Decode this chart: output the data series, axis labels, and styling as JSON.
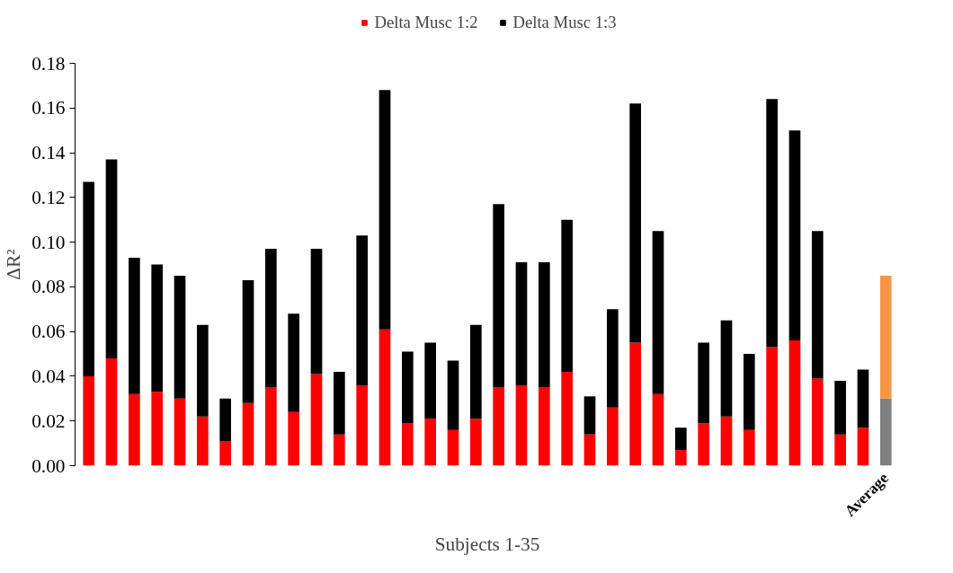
{
  "chart_data": {
    "type": "bar",
    "stacked": true,
    "xlabel": "Subjects 1-35",
    "ylabel": "ΔR²",
    "categories": [
      null,
      null,
      null,
      null,
      null,
      null,
      null,
      null,
      null,
      null,
      null,
      null,
      null,
      null,
      null,
      null,
      null,
      null,
      null,
      null,
      null,
      null,
      null,
      null,
      null,
      null,
      null,
      null,
      null,
      null,
      null,
      null,
      null,
      null,
      null,
      "Average"
    ],
    "series": [
      {
        "name": "Delta Musc 1:2",
        "color": "#ff0000",
        "colors": [
          "#ff0000",
          "#ff0000",
          "#ff0000",
          "#ff0000",
          "#ff0000",
          "#ff0000",
          "#ff0000",
          "#ff0000",
          "#ff0000",
          "#ff0000",
          "#ff0000",
          "#ff0000",
          "#ff0000",
          "#ff0000",
          "#ff0000",
          "#ff0000",
          "#ff0000",
          "#ff0000",
          "#ff0000",
          "#ff0000",
          "#ff0000",
          "#ff0000",
          "#ff0000",
          "#ff0000",
          "#ff0000",
          "#ff0000",
          "#ff0000",
          "#ff0000",
          "#ff0000",
          "#ff0000",
          "#ff0000",
          "#ff0000",
          "#ff0000",
          "#ff0000",
          "#ff0000",
          "#808080"
        ],
        "values": [
          0.04,
          0.048,
          0.032,
          0.033,
          0.03,
          0.022,
          0.011,
          0.028,
          0.035,
          0.024,
          0.041,
          0.014,
          0.036,
          0.061,
          0.019,
          0.021,
          0.016,
          0.021,
          0.035,
          0.036,
          0.035,
          0.042,
          0.014,
          0.026,
          0.055,
          0.032,
          0.007,
          0.019,
          0.022,
          0.016,
          0.053,
          0.056,
          0.039,
          0.014,
          0.017,
          0.03
        ]
      },
      {
        "name": "Delta Musc 1:3",
        "color": "#000000",
        "colors": [
          "#000000",
          "#000000",
          "#000000",
          "#000000",
          "#000000",
          "#000000",
          "#000000",
          "#000000",
          "#000000",
          "#000000",
          "#000000",
          "#000000",
          "#000000",
          "#000000",
          "#000000",
          "#000000",
          "#000000",
          "#000000",
          "#000000",
          "#000000",
          "#000000",
          "#000000",
          "#000000",
          "#000000",
          "#000000",
          "#000000",
          "#000000",
          "#000000",
          "#000000",
          "#000000",
          "#000000",
          "#000000",
          "#000000",
          "#000000",
          "#000000",
          "#f79646"
        ],
        "values": [
          0.087,
          0.089,
          0.061,
          0.057,
          0.055,
          0.041,
          0.019,
          0.055,
          0.062,
          0.044,
          0.056,
          0.028,
          0.067,
          0.107,
          0.032,
          0.034,
          0.031,
          0.042,
          0.082,
          0.055,
          0.056,
          0.068,
          0.017,
          0.044,
          0.107,
          0.073,
          0.01,
          0.036,
          0.043,
          0.034,
          0.111,
          0.094,
          0.066,
          0.024,
          0.026,
          0.055
        ]
      }
    ],
    "ylim": [
      0,
      0.18
    ],
    "yticks": [
      {
        "value": 0,
        "label": "0.00"
      },
      {
        "value": 0.02,
        "label": "0.02"
      },
      {
        "value": 0.04,
        "label": "0.04"
      },
      {
        "value": 0.06,
        "label": "0.06"
      },
      {
        "value": 0.08,
        "label": "0.08"
      },
      {
        "value": 0.1,
        "label": "0.10"
      },
      {
        "value": 0.12,
        "label": "0.12"
      },
      {
        "value": 0.14,
        "label": "0.14"
      },
      {
        "value": 0.16,
        "label": "0.16"
      },
      {
        "value": 0.18,
        "label": "0.18"
      }
    ],
    "grid": false,
    "legend": "top"
  }
}
